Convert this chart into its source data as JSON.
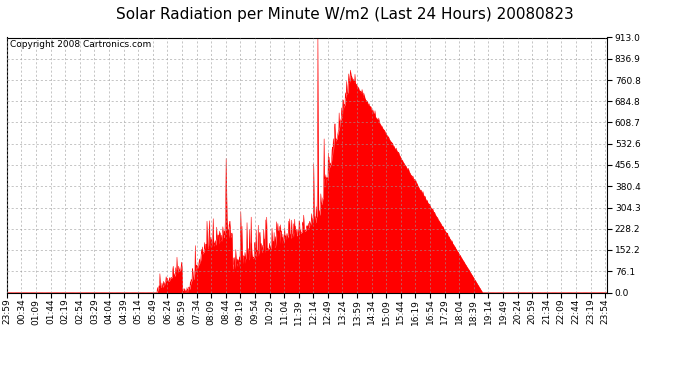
{
  "title": "Solar Radiation per Minute W/m2 (Last 24 Hours) 20080823",
  "copyright_text": "Copyright 2008 Cartronics.com",
  "y_min": 0.0,
  "y_max": 913.0,
  "y_ticks": [
    0.0,
    76.1,
    152.2,
    228.2,
    304.3,
    380.4,
    456.5,
    532.6,
    608.7,
    684.8,
    760.8,
    836.9,
    913.0
  ],
  "fill_color": "#FF0000",
  "line_color": "#FF0000",
  "bg_color": "#FFFFFF",
  "grid_color": "#999999",
  "dashed_line_color": "#FF0000",
  "title_fontsize": 11,
  "copyright_fontsize": 6.5,
  "tick_fontsize": 6.5
}
